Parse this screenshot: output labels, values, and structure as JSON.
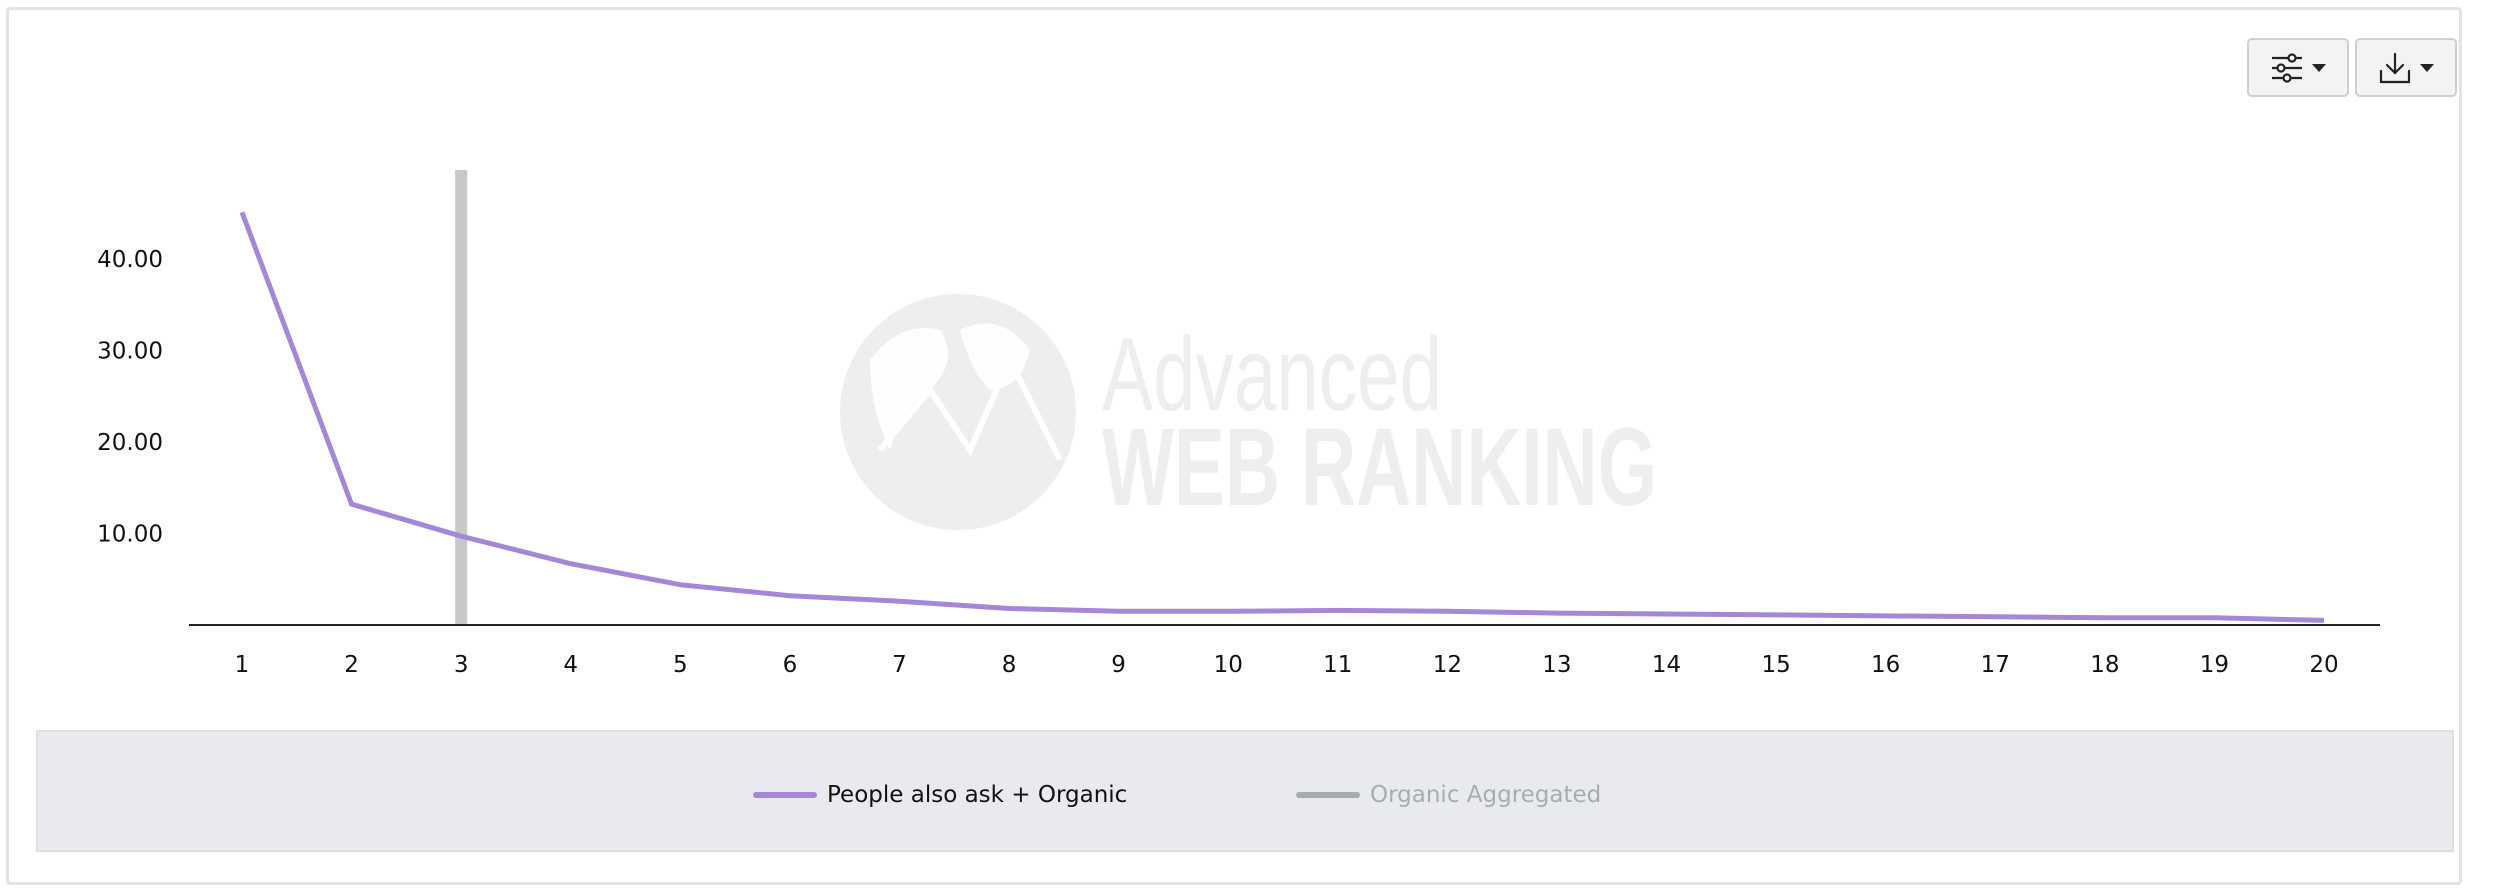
{
  "toolbar": {
    "settings_icon": "sliders-icon",
    "download_icon": "download-icon"
  },
  "watermark": {
    "line1": "Advanced",
    "line2": "WEB RANKING"
  },
  "colors": {
    "series_line": "#a687d6",
    "aggregated_bar": "#c8c8ca",
    "legend_inactive_text": "#a8acb0",
    "legend_inactive_swatch": "#a8acb0",
    "watermark": "#eeeef0"
  },
  "chart_data": {
    "type": "line",
    "x": [
      1,
      2,
      3,
      4,
      5,
      6,
      7,
      8,
      9,
      10,
      11,
      12,
      13,
      14,
      15,
      16,
      17,
      18,
      19,
      20
    ],
    "series": [
      {
        "name": "People also ask + Organic",
        "values": [
          45.1,
          13.2,
          9.7,
          6.7,
          4.4,
          3.2,
          2.6,
          1.8,
          1.5,
          1.5,
          1.6,
          1.5,
          1.3,
          1.2,
          1.1,
          1.0,
          0.9,
          0.8,
          0.8,
          0.5
        ]
      },
      {
        "name": "Organic Aggregated",
        "type": "bar",
        "hidden": true,
        "highlight_x": 3
      }
    ],
    "y_ticks": [
      "10.00",
      "20.00",
      "30.00",
      "40.00"
    ],
    "x_ticks": [
      "1",
      "2",
      "3",
      "4",
      "5",
      "6",
      "7",
      "8",
      "9",
      "10",
      "11",
      "12",
      "13",
      "14",
      "15",
      "16",
      "17",
      "18",
      "19",
      "20"
    ],
    "ylim": [
      0,
      50
    ],
    "grid": false,
    "legend_position": "bottom",
    "xlabel": "",
    "ylabel": ""
  },
  "legend": {
    "items": [
      {
        "label": "People also ask + Organic"
      },
      {
        "label": "Organic Aggregated"
      }
    ]
  }
}
